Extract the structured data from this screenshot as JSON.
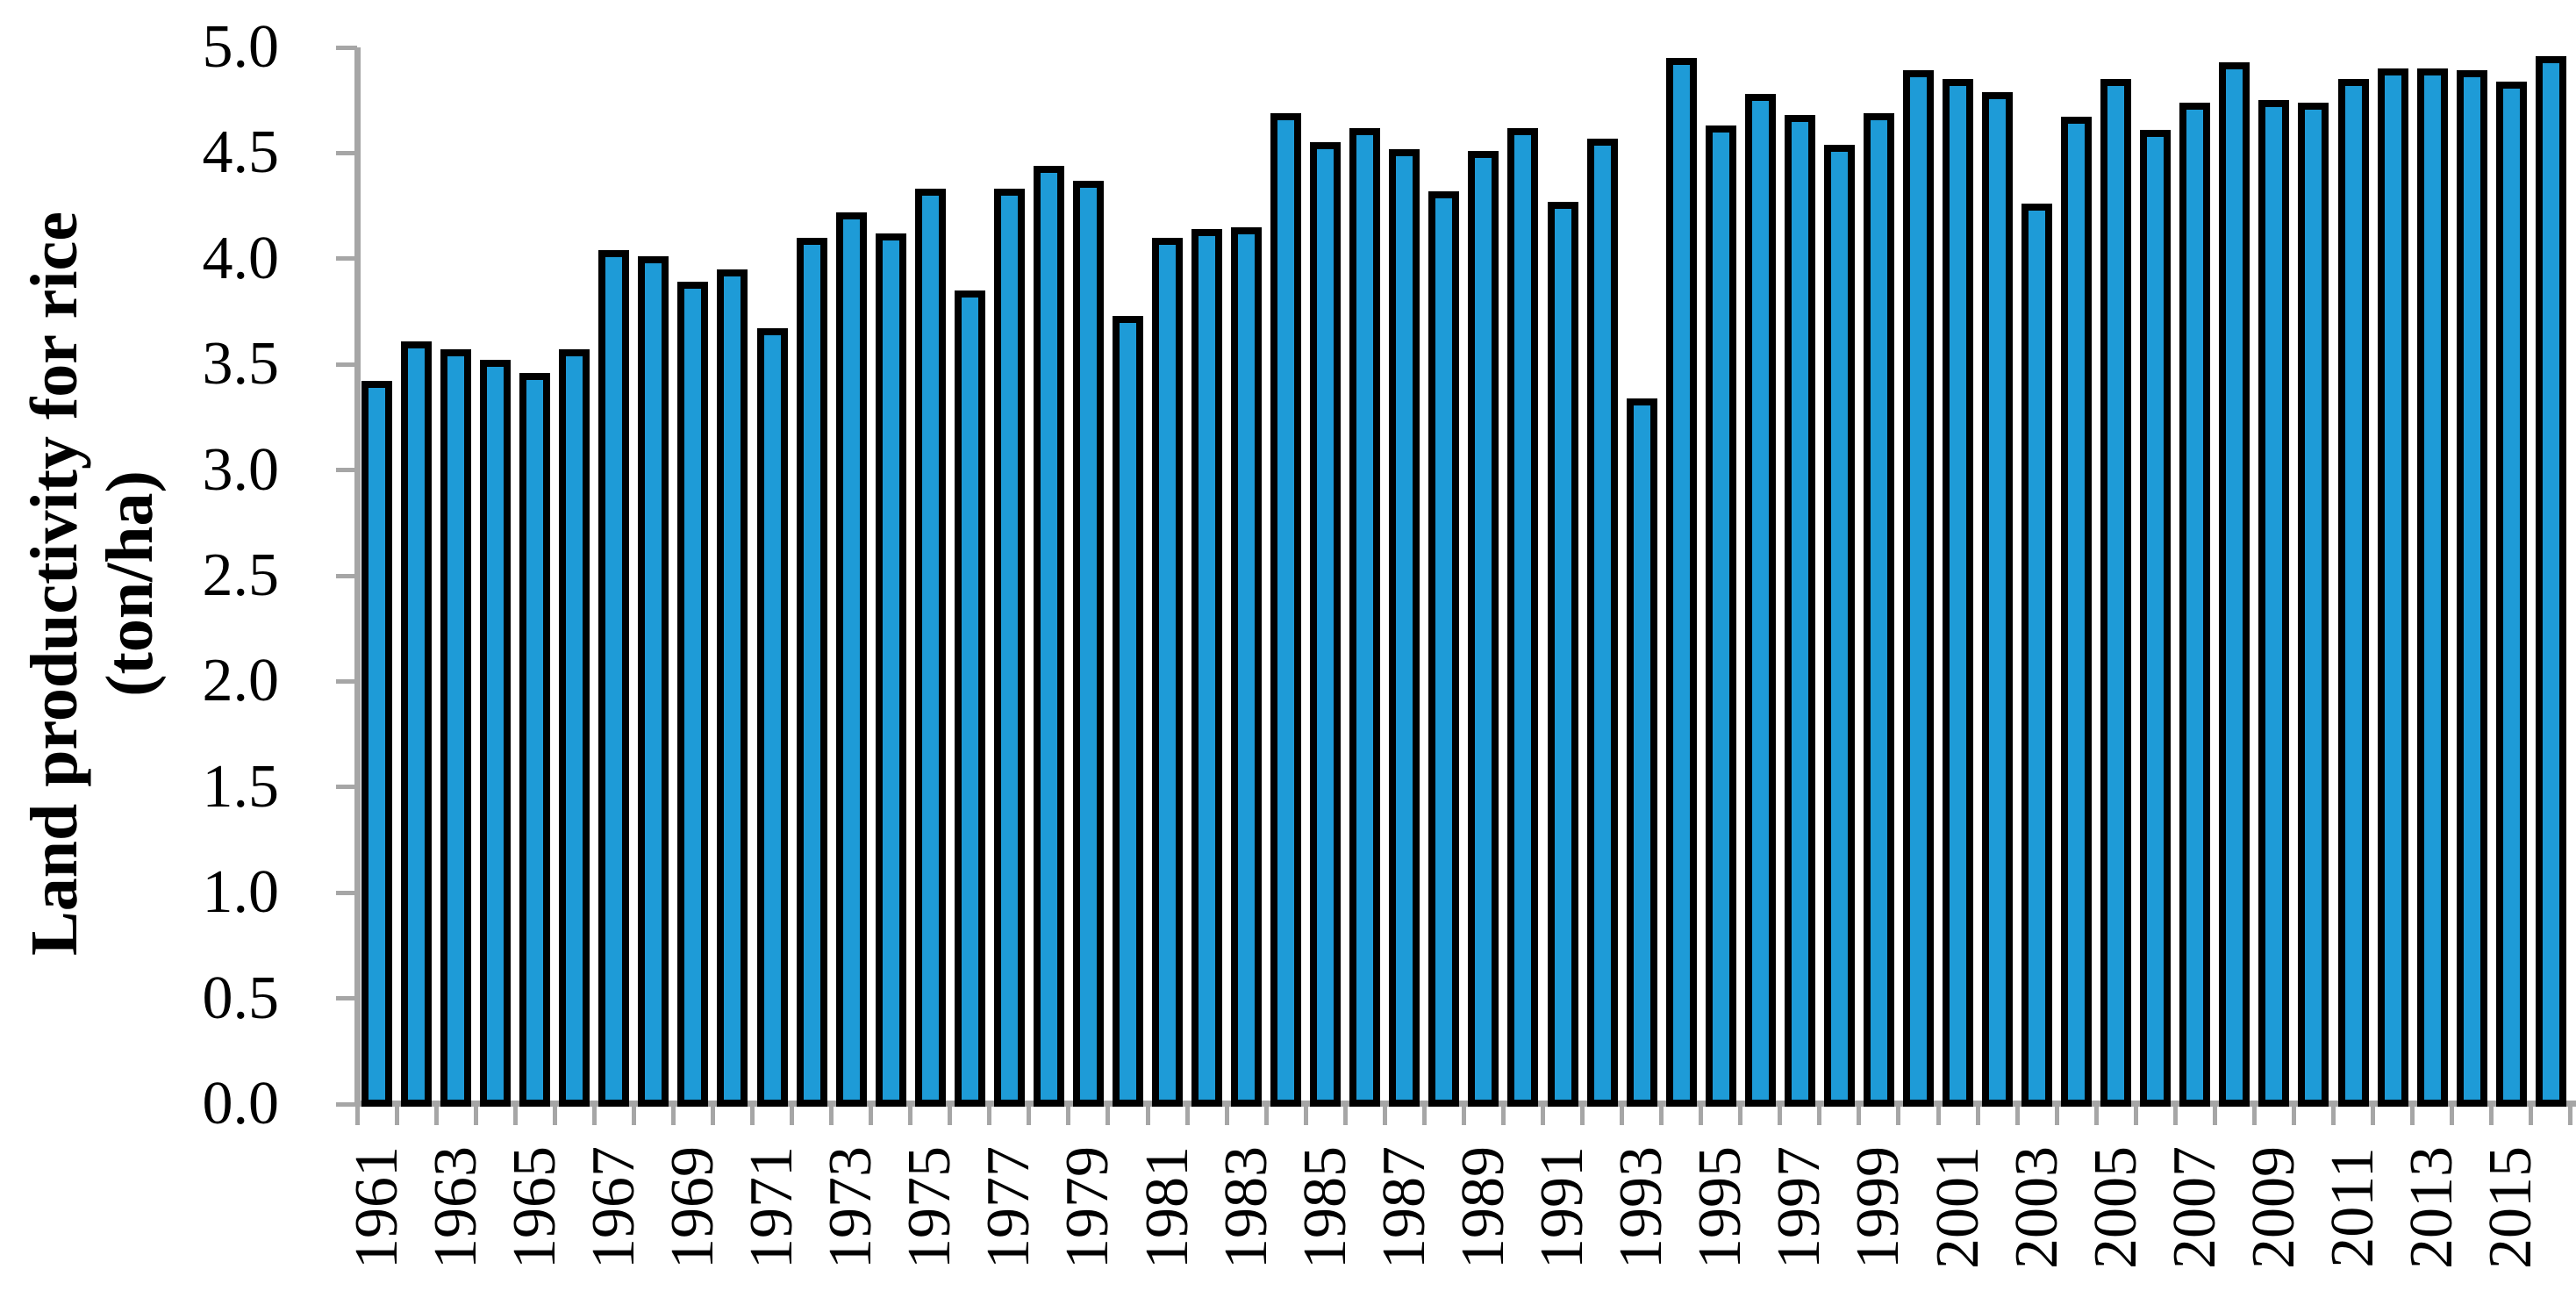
{
  "chart_data": {
    "type": "bar",
    "title": "",
    "ylabel_line1": "Land productivity for rice",
    "ylabel_line2": "(ton/ha)",
    "categories": [
      "1961",
      "1962",
      "1963",
      "1964",
      "1965",
      "1966",
      "1967",
      "1968",
      "1969",
      "1970",
      "1971",
      "1972",
      "1973",
      "1974",
      "1975",
      "1976",
      "1977",
      "1978",
      "1979",
      "1980",
      "1981",
      "1982",
      "1983",
      "1984",
      "1985",
      "1986",
      "1987",
      "1988",
      "1989",
      "1990",
      "1991",
      "1992",
      "1993",
      "1994",
      "1995",
      "1996",
      "1997",
      "1998",
      "1999",
      "2000",
      "2001",
      "2002",
      "2003",
      "2004",
      "2005",
      "2006",
      "2007",
      "2008",
      "2009",
      "2010",
      "2011",
      "2012",
      "2013",
      "2014",
      "2015",
      "2016"
    ],
    "values": [
      3.42,
      3.61,
      3.57,
      3.52,
      3.46,
      3.57,
      4.04,
      4.01,
      3.89,
      3.95,
      3.67,
      4.1,
      4.22,
      4.12,
      4.33,
      3.85,
      4.33,
      4.44,
      4.37,
      3.73,
      4.1,
      4.14,
      4.15,
      4.69,
      4.55,
      4.62,
      4.52,
      4.32,
      4.51,
      4.62,
      4.27,
      4.57,
      3.34,
      4.95,
      4.63,
      4.78,
      4.68,
      4.54,
      4.69,
      4.89,
      4.85,
      4.79,
      4.26,
      4.67,
      4.85,
      4.61,
      4.74,
      4.93,
      4.75,
      4.74,
      4.85,
      4.9,
      4.9,
      4.89,
      4.84,
      4.96
    ],
    "y_tick_labels": [
      "0.0",
      "0.5",
      "1.0",
      "1.5",
      "2.0",
      "2.5",
      "3.0",
      "3.5",
      "4.0",
      "4.5",
      "5.0"
    ],
    "x_tick_labels": [
      "1961",
      "1963",
      "1965",
      "1967",
      "1969",
      "1971",
      "1973",
      "1975",
      "1977",
      "1979",
      "1981",
      "1983",
      "1985",
      "1987",
      "1989",
      "1991",
      "1993",
      "1995",
      "1997",
      "1999",
      "2001",
      "2003",
      "2005",
      "2007",
      "2009",
      "2011",
      "2013",
      "2015"
    ],
    "ylim": [
      0,
      5
    ],
    "grid": "off",
    "legend": "none",
    "bar_color": "#1E9BD7",
    "bar_border_color": "#000000",
    "axis_color": "#A6A6A6",
    "text_color": "#000000"
  }
}
